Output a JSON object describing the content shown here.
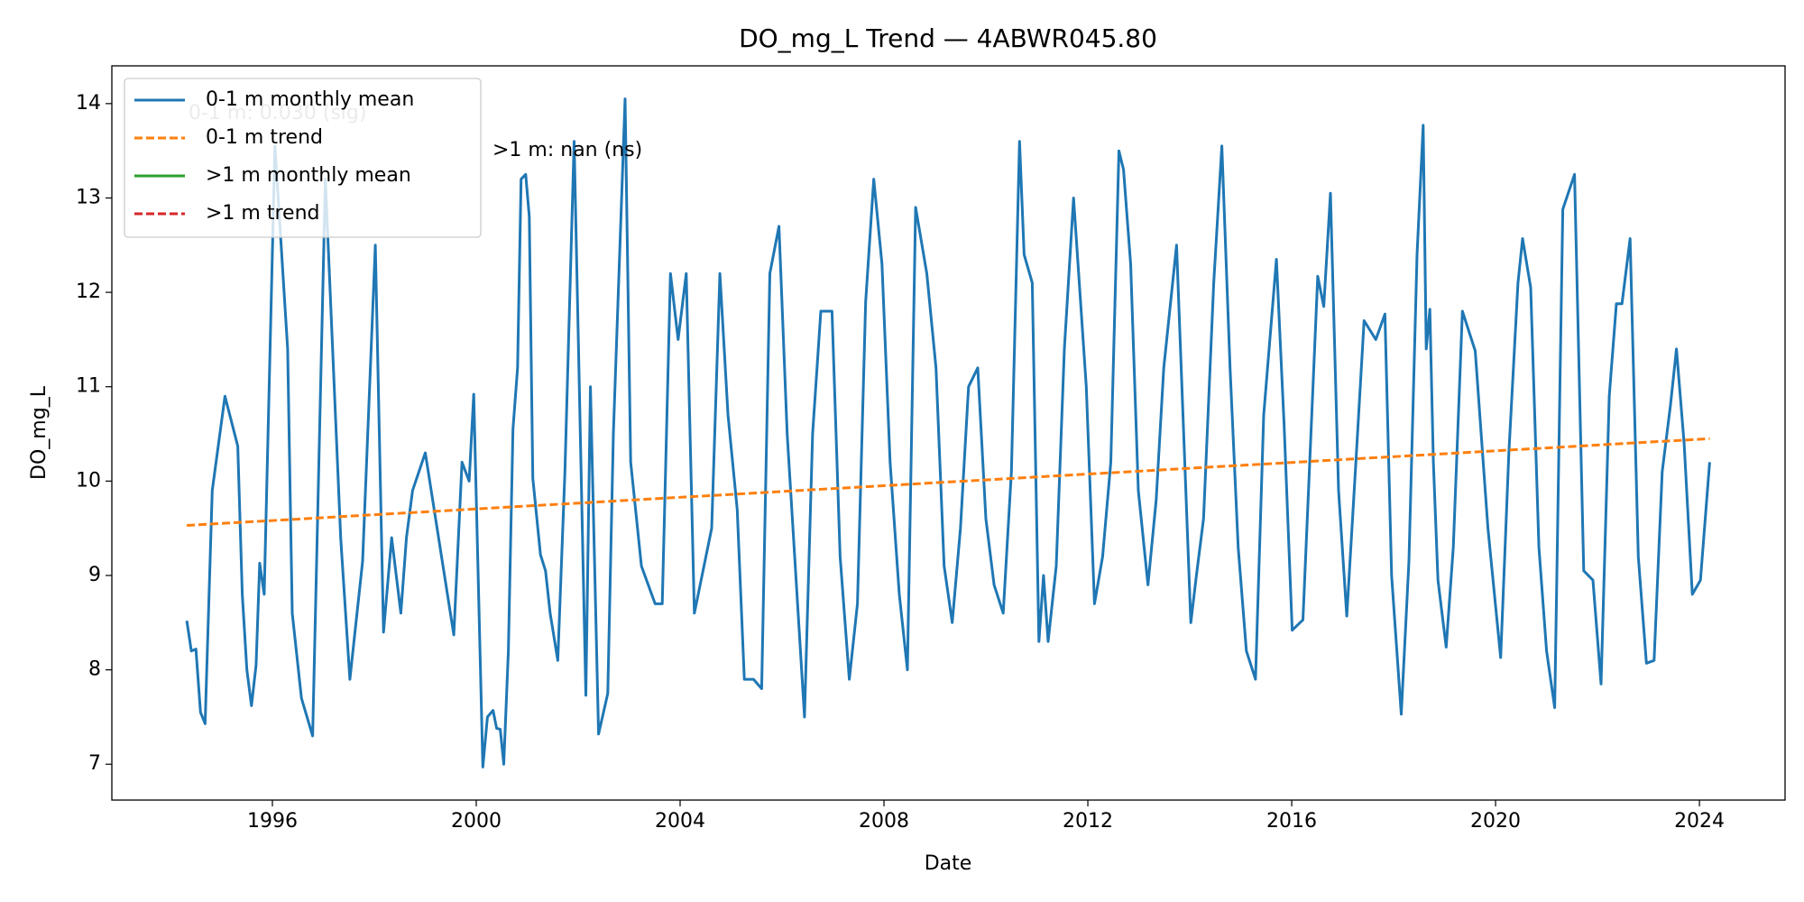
{
  "chart_data": {
    "type": "line",
    "title": "DO_mg_L Trend — 4ABWR045.80",
    "xlabel": "Date",
    "ylabel": "DO_mg_L",
    "xlim": [
      1992.85,
      2025.68
    ],
    "ylim": [
      6.62,
      14.4
    ],
    "xticks": [
      1996,
      2000,
      2004,
      2008,
      2012,
      2016,
      2020,
      2024
    ],
    "yticks": [
      7,
      8,
      9,
      10,
      11,
      12,
      13,
      14
    ],
    "grid": false,
    "legend": "upper left",
    "annotations": [
      "0-1 m: 0.030 (sig)",
      ">1 m: nan (ns)"
    ],
    "series": [
      {
        "name": "0-1 m monthly mean",
        "color": "#1f77b4",
        "style": "solid",
        "x": [
          1994.32,
          1994.41,
          1994.5,
          1994.59,
          1994.68,
          1994.82,
          1995.07,
          1995.32,
          1995.41,
          1995.5,
          1995.59,
          1995.68,
          1995.75,
          1995.84,
          1996.05,
          1996.3,
          1996.39,
          1996.57,
          1996.79,
          1997.04,
          1997.34,
          1997.52,
          1997.77,
          1998.02,
          1998.18,
          1998.34,
          1998.52,
          1998.63,
          1998.75,
          1999.0,
          1999.56,
          1999.72,
          1999.86,
          1999.95,
          2000.13,
          2000.22,
          2000.33,
          2000.4,
          2000.47,
          2000.54,
          2000.63,
          2000.72,
          2000.81,
          2000.88,
          2000.97,
          2001.04,
          2001.11,
          2001.26,
          2001.36,
          2001.45,
          2001.6,
          2001.74,
          2001.92,
          2002.15,
          2002.24,
          2002.4,
          2002.58,
          2002.69,
          2002.92,
          2003.03,
          2003.24,
          2003.51,
          2003.65,
          2003.81,
          2003.96,
          2004.12,
          2004.28,
          2004.62,
          2004.78,
          2004.94,
          2005.12,
          2005.26,
          2005.44,
          2005.6,
          2005.76,
          2005.94,
          2006.1,
          2006.44,
          2006.6,
          2006.76,
          2006.98,
          2007.14,
          2007.32,
          2007.48,
          2007.64,
          2007.8,
          2007.96,
          2008.12,
          2008.3,
          2008.46,
          2008.62,
          2008.84,
          2009.02,
          2009.18,
          2009.34,
          2009.5,
          2009.66,
          2009.84,
          2010.0,
          2010.16,
          2010.34,
          2010.5,
          2010.66,
          2010.75,
          2010.91,
          2011.04,
          2011.13,
          2011.22,
          2011.38,
          2011.54,
          2011.72,
          2011.97,
          2012.13,
          2012.29,
          2012.45,
          2012.61,
          2012.7,
          2012.84,
          2012.99,
          2013.18,
          2013.34,
          2013.49,
          2013.74,
          2014.02,
          2014.13,
          2014.27,
          2014.47,
          2014.63,
          2014.79,
          2014.95,
          2015.11,
          2015.29,
          2015.45,
          2015.7,
          2015.85,
          2016.01,
          2016.22,
          2016.51,
          2016.63,
          2016.76,
          2016.92,
          2017.08,
          2017.26,
          2017.42,
          2017.65,
          2017.83,
          2017.96,
          2018.15,
          2018.3,
          2018.46,
          2018.58,
          2018.64,
          2018.71,
          2018.78,
          2018.87,
          2019.03,
          2019.17,
          2019.35,
          2019.6,
          2019.85,
          2020.1,
          2020.26,
          2020.44,
          2020.53,
          2020.69,
          2020.85,
          2021.0,
          2021.16,
          2021.32,
          2021.55,
          2021.73,
          2021.91,
          2022.07,
          2022.23,
          2022.37,
          2022.48,
          2022.64,
          2022.8,
          2022.96,
          2023.11,
          2023.27,
          2023.43,
          2023.55,
          2023.7,
          2023.86,
          2024.02,
          2024.2
        ],
        "values": [
          8.52,
          8.2,
          8.22,
          7.55,
          7.43,
          9.9,
          10.9,
          10.37,
          8.8,
          8.0,
          7.62,
          8.05,
          9.13,
          8.8,
          13.55,
          11.4,
          8.6,
          7.7,
          7.3,
          13.2,
          9.4,
          7.9,
          9.15,
          12.5,
          8.4,
          9.4,
          8.6,
          9.4,
          9.9,
          10.3,
          8.37,
          10.2,
          10.0,
          10.92,
          6.97,
          7.5,
          7.57,
          7.38,
          7.37,
          7.0,
          8.2,
          10.55,
          11.2,
          13.2,
          13.25,
          12.8,
          10.03,
          9.22,
          9.05,
          8.6,
          8.1,
          10.1,
          13.6,
          7.73,
          11.0,
          7.32,
          7.75,
          10.5,
          14.05,
          10.2,
          9.1,
          8.7,
          8.7,
          12.2,
          11.5,
          12.2,
          8.6,
          9.5,
          12.2,
          10.7,
          9.7,
          7.9,
          7.9,
          7.8,
          12.2,
          12.7,
          10.5,
          7.5,
          10.5,
          11.8,
          11.8,
          9.2,
          7.9,
          8.7,
          11.9,
          13.2,
          12.3,
          10.2,
          8.8,
          8.0,
          12.9,
          12.2,
          11.2,
          9.1,
          8.5,
          9.5,
          11.0,
          11.2,
          9.6,
          8.9,
          8.6,
          10.1,
          13.6,
          12.4,
          12.1,
          8.3,
          9.0,
          8.3,
          9.1,
          11.4,
          13.0,
          11.0,
          8.7,
          9.2,
          10.2,
          13.5,
          13.3,
          12.3,
          9.9,
          8.9,
          9.8,
          11.2,
          12.5,
          8.5,
          9.0,
          9.6,
          12.1,
          13.55,
          11.2,
          9.3,
          8.2,
          7.9,
          10.7,
          12.35,
          10.6,
          8.42,
          8.53,
          12.17,
          11.85,
          13.05,
          9.9,
          8.57,
          10.2,
          11.7,
          11.5,
          11.77,
          9.0,
          7.53,
          9.15,
          12.4,
          13.77,
          11.4,
          11.82,
          10.2,
          8.95,
          8.24,
          9.3,
          11.8,
          11.38,
          9.5,
          8.13,
          10.3,
          12.1,
          12.57,
          12.05,
          9.3,
          8.2,
          7.6,
          12.88,
          13.25,
          9.05,
          8.95,
          7.85,
          10.9,
          11.88,
          11.88,
          12.57,
          9.2,
          8.07,
          8.1,
          10.1,
          10.8,
          11.4,
          10.4,
          8.8,
          8.95,
          10.2
        ]
      },
      {
        "name": "0-1 m trend",
        "color": "#ff7f0e",
        "style": "dashed",
        "x": [
          1994.32,
          2024.2
        ],
        "values": [
          9.53,
          10.45
        ]
      },
      {
        "name": ">1 m monthly mean",
        "color": "#2ca02c",
        "style": "solid"
      },
      {
        "name": ">1 m trend",
        "color": "#d62728",
        "style": "dashed"
      }
    ]
  }
}
